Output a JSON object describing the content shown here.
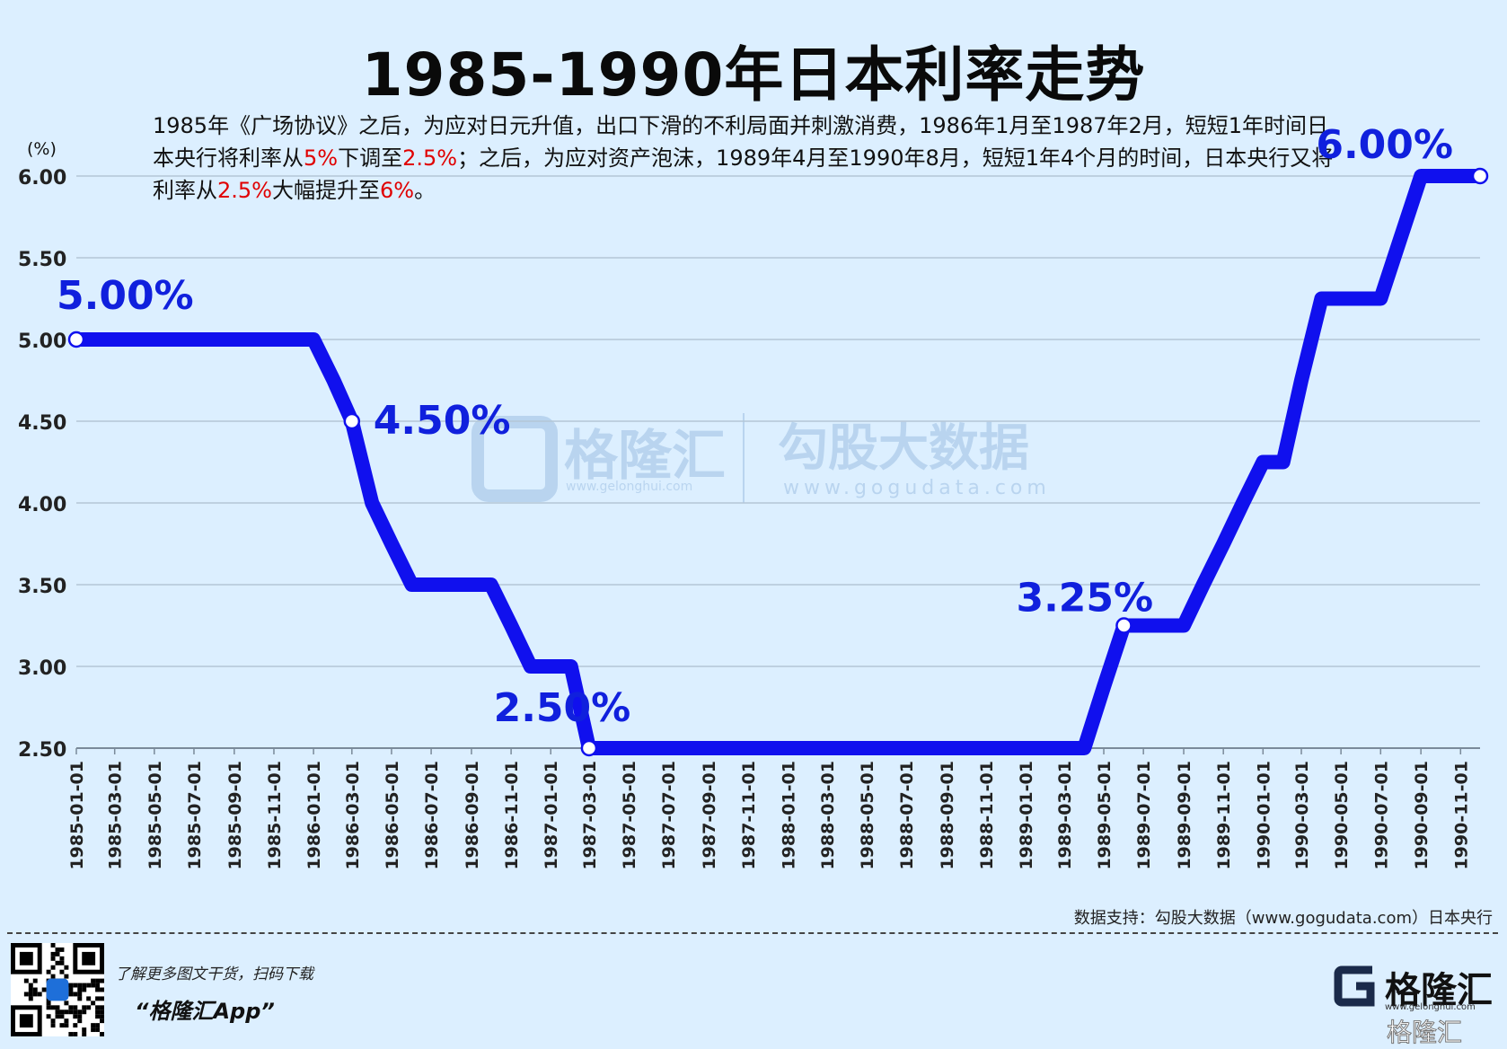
{
  "header": {
    "title": "1985-1990年日本利率走势",
    "description_parts": [
      {
        "text": "1985年《广场协议》之后，为应对日元升值，出口下滑的不利局面并刺激消费，1986年1月至1987年2月，短短1年时间日本央行将利率从",
        "highlight": false
      },
      {
        "text": "5%",
        "highlight": true
      },
      {
        "text": "下调至",
        "highlight": false
      },
      {
        "text": "2.5%",
        "highlight": true
      },
      {
        "text": "；之后，为应对资产泡沫，1989年4月至1990年8月，短短1年4个月的时间，日本央行又将利率从",
        "highlight": false
      },
      {
        "text": "2.5%",
        "highlight": true
      },
      {
        "text": "大幅提升至",
        "highlight": false
      },
      {
        "text": "6%",
        "highlight": true
      },
      {
        "text": "。",
        "highlight": false
      }
    ]
  },
  "chart_data": {
    "type": "line",
    "ylabel": "(%)",
    "ylim": [
      2.5,
      6.0
    ],
    "y_ticks": [
      "2.50",
      "3.00",
      "3.50",
      "4.00",
      "4.50",
      "5.00",
      "5.50",
      "6.00"
    ],
    "x_tick_labels": [
      "1985-01-01",
      "1985-03-01",
      "1985-05-01",
      "1985-07-01",
      "1985-09-01",
      "1985-11-01",
      "1986-01-01",
      "1986-03-01",
      "1986-05-01",
      "1986-07-01",
      "1986-09-01",
      "1986-11-01",
      "1987-01-01",
      "1987-03-01",
      "1987-05-01",
      "1987-07-01",
      "1987-09-01",
      "1987-11-01",
      "1988-01-01",
      "1988-03-01",
      "1988-05-01",
      "1988-07-01",
      "1988-09-01",
      "1988-11-01",
      "1989-01-01",
      "1989-03-01",
      "1989-05-01",
      "1989-07-01",
      "1989-09-01",
      "1989-11-01",
      "1990-01-01",
      "1990-03-01",
      "1990-05-01",
      "1990-07-01",
      "1990-09-01",
      "1990-11-01"
    ],
    "series": [
      {
        "x": [
          "1985-01-01",
          "1985-02-01",
          "1985-03-01",
          "1985-04-01",
          "1985-05-01",
          "1985-06-01",
          "1985-07-01",
          "1985-08-01",
          "1985-09-01",
          "1985-10-01",
          "1985-11-01",
          "1985-12-01",
          "1986-01-01",
          "1986-02-01",
          "1986-03-01",
          "1986-04-01",
          "1986-05-01",
          "1986-06-01",
          "1986-07-01",
          "1986-08-01",
          "1986-09-01",
          "1986-10-01",
          "1986-11-01",
          "1986-12-01",
          "1987-01-01",
          "1987-02-01",
          "1987-03-01",
          "1987-04-01",
          "1987-05-01",
          "1987-06-01",
          "1987-07-01",
          "1987-08-01",
          "1987-09-01",
          "1987-10-01",
          "1987-11-01",
          "1987-12-01",
          "1988-01-01",
          "1988-02-01",
          "1988-03-01",
          "1988-04-01",
          "1988-05-01",
          "1988-06-01",
          "1988-07-01",
          "1988-08-01",
          "1988-09-01",
          "1988-10-01",
          "1988-11-01",
          "1988-12-01",
          "1989-01-01",
          "1989-02-01",
          "1989-03-01",
          "1989-04-01",
          "1989-05-01",
          "1989-06-01",
          "1989-07-01",
          "1989-08-01",
          "1989-09-01",
          "1989-10-01",
          "1989-11-01",
          "1989-12-01",
          "1990-01-01",
          "1990-02-01",
          "1990-03-01",
          "1990-04-01",
          "1990-05-01",
          "1990-06-01",
          "1990-07-01",
          "1990-08-01",
          "1990-09-01",
          "1990-10-01",
          "1990-11-01",
          "1990-12-01"
        ],
        "values": [
          5.0,
          5.0,
          5.0,
          5.0,
          5.0,
          5.0,
          5.0,
          5.0,
          5.0,
          5.0,
          5.0,
          5.0,
          5.0,
          4.75,
          4.5,
          4.0,
          3.75,
          3.5,
          3.5,
          3.5,
          3.5,
          3.5,
          3.25,
          3.0,
          3.0,
          3.0,
          2.5,
          2.5,
          2.5,
          2.5,
          2.5,
          2.5,
          2.5,
          2.5,
          2.5,
          2.5,
          2.5,
          2.5,
          2.5,
          2.5,
          2.5,
          2.5,
          2.5,
          2.5,
          2.5,
          2.5,
          2.5,
          2.5,
          2.5,
          2.5,
          2.5,
          2.5,
          2.875,
          3.25,
          3.25,
          3.25,
          3.25,
          3.5,
          3.75,
          4.0,
          4.25,
          4.25,
          4.75,
          5.25,
          5.25,
          5.25,
          5.25,
          5.625,
          6.0,
          6.0,
          6.0,
          6.0
        ]
      }
    ],
    "markers": [
      {
        "x_index": 0,
        "label": "5.00%"
      },
      {
        "x_index": 14,
        "label": "4.50%"
      },
      {
        "x_index": 26,
        "label": "2.50%"
      },
      {
        "x_index": 53,
        "label": "3.25%"
      },
      {
        "x_index": 71,
        "label": "6.00%"
      }
    ],
    "line_color": "#1010ee",
    "grid": true
  },
  "watermark": {
    "brand": "格隆汇",
    "brand_url": "www.gelonghui.com",
    "data_brand": "勾股大数据",
    "data_url": "www.gogudata.com"
  },
  "footer": {
    "source": "数据支持：勾股大数据（www.gogudata.com）日本央行",
    "tagline": "了解更多图文干货，扫码下载",
    "app_name": "“格隆汇App”",
    "brand_name": "格隆汇",
    "brand_url": "www.gelonghui.com"
  }
}
